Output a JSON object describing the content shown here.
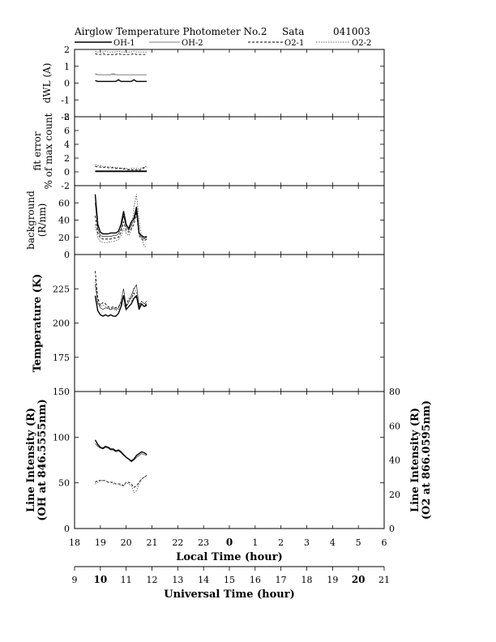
{
  "header": {
    "title": "Airglow Temperature Photometer No.2",
    "site": "Sata",
    "date": "041003"
  },
  "legend": [
    {
      "name": "OH-1",
      "style": "solid-thick"
    },
    {
      "name": "OH-2",
      "style": "solid-thin"
    },
    {
      "name": "O2-1",
      "style": "dashed"
    },
    {
      "name": "O2-2",
      "style": "dotted"
    }
  ],
  "chart_data": {
    "type": "line",
    "x_local_hours": [
      18.8,
      18.9,
      19.0,
      19.1,
      19.2,
      19.3,
      19.4,
      19.5,
      19.6,
      19.7,
      19.8,
      19.9,
      20.0,
      20.1,
      20.2,
      20.3,
      20.4,
      20.5,
      20.6,
      20.7,
      20.8
    ],
    "x_axes": {
      "local": {
        "label": "Local Time (hour)",
        "ticks": [
          "18",
          "19",
          "20",
          "21",
          "22",
          "23",
          "0",
          "1",
          "2",
          "3",
          "4",
          "5",
          "6"
        ],
        "bold_ticks": [
          "0"
        ]
      },
      "universal": {
        "label": "Universal Time (hour)",
        "ticks": [
          "9",
          "10",
          "11",
          "12",
          "13",
          "14",
          "15",
          "16",
          "17",
          "18",
          "19",
          "20",
          "21"
        ],
        "bold_ticks": [
          "10",
          "20"
        ]
      }
    },
    "panels": [
      {
        "id": "dwl",
        "ylabel": [
          "dWL (A)"
        ],
        "ylim": [
          -2,
          2
        ],
        "yticks": [
          "2",
          "1",
          "0",
          "-1",
          "-2"
        ],
        "series": [
          {
            "name": "OH-1",
            "values": [
              0.15,
              0.1,
              0.1,
              0.1,
              0.1,
              0.1,
              0.1,
              0.1,
              0.1,
              0.2,
              0.1,
              0.1,
              0.1,
              0.1,
              0.1,
              0.2,
              0.1,
              0.1,
              0.1,
              0.1,
              0.1
            ]
          },
          {
            "name": "OH-2",
            "values": [
              0.55,
              0.5,
              0.5,
              0.5,
              0.5,
              0.5,
              0.5,
              0.55,
              0.5,
              0.5,
              0.5,
              0.5,
              0.5,
              0.5,
              0.5,
              0.5,
              0.5,
              0.5,
              0.5,
              0.5,
              0.5
            ]
          },
          {
            "name": "O2-1",
            "values": [
              1.75,
              1.7,
              1.7,
              1.75,
              1.7,
              1.7,
              1.7,
              1.7,
              1.7,
              1.75,
              1.7,
              1.7,
              1.7,
              1.7,
              1.7,
              1.75,
              1.7,
              1.7,
              1.7,
              1.7,
              1.7
            ]
          },
          {
            "name": "O2-2",
            "values": [
              1.9,
              1.85,
              1.85,
              1.85,
              1.9,
              1.85,
              1.85,
              1.85,
              1.85,
              1.9,
              1.85,
              1.85,
              1.85,
              1.85,
              1.85,
              1.9,
              1.85,
              1.85,
              1.85,
              1.85,
              1.85
            ]
          }
        ]
      },
      {
        "id": "fit",
        "ylabel": [
          "fit error",
          "% of max count"
        ],
        "ylim": [
          -2,
          8
        ],
        "yticks": [
          "8",
          "6",
          "4",
          "2",
          "0",
          "-2"
        ],
        "series": [
          {
            "name": "OH-1",
            "values": [
              0.05,
              0.05,
              0.05,
              0.05,
              0.05,
              0.05,
              0.05,
              0.05,
              0.05,
              0.05,
              0.05,
              0.05,
              0.05,
              0.05,
              0.05,
              0.05,
              0.05,
              0.05,
              0.05,
              0.05,
              0.05
            ]
          },
          {
            "name": "OH-2",
            "values": [
              0.15,
              0.15,
              0.15,
              0.15,
              0.15,
              0.15,
              0.15,
              0.15,
              0.15,
              0.15,
              0.15,
              0.15,
              0.15,
              0.15,
              0.15,
              0.15,
              0.15,
              0.15,
              0.15,
              0.15,
              0.15
            ]
          },
          {
            "name": "O2-1",
            "values": [
              0.8,
              0.7,
              0.7,
              0.6,
              0.7,
              0.6,
              0.6,
              0.6,
              0.5,
              0.5,
              0.5,
              0.4,
              0.4,
              0.3,
              0.3,
              0.3,
              0.3,
              0.2,
              0.4,
              0.6,
              0.7
            ]
          },
          {
            "name": "O2-2",
            "values": [
              1.0,
              0.9,
              0.9,
              0.8,
              0.8,
              0.8,
              0.7,
              0.7,
              0.6,
              0.6,
              0.5,
              0.6,
              0.5,
              0.4,
              0.5,
              0.5,
              0.5,
              0.4,
              0.6,
              0.7,
              0.8
            ]
          }
        ]
      },
      {
        "id": "background",
        "ylabel": [
          "background",
          "(R/nm)"
        ],
        "ylim": [
          0,
          80
        ],
        "yticks": [
          "60",
          "40",
          "20",
          "0"
        ],
        "series": [
          {
            "name": "OH-1",
            "values": [
              70,
              35,
              26,
              24,
              24,
              24,
              25,
              25,
              25,
              27,
              35,
              50,
              35,
              30,
              38,
              42,
              55,
              25,
              22,
              20,
              21
            ]
          },
          {
            "name": "OH-2",
            "values": [
              60,
              30,
              22,
              21,
              21,
              21,
              21,
              22,
              22,
              24,
              30,
              45,
              32,
              28,
              34,
              40,
              50,
              24,
              20,
              18,
              20
            ]
          },
          {
            "name": "O2-1",
            "values": [
              45,
              25,
              19,
              18,
              18,
              18,
              18,
              19,
              19,
              20,
              26,
              38,
              28,
              26,
              30,
              35,
              48,
              22,
              18,
              16,
              18
            ]
          },
          {
            "name": "O2-2",
            "values": [
              35,
              20,
              15,
              14,
              14,
              14,
              15,
              15,
              16,
              17,
              22,
              30,
              25,
              22,
              28,
              55,
              70,
              40,
              20,
              10,
              8
            ]
          }
        ]
      },
      {
        "id": "temperature",
        "ylabel": [
          "Temperature (K)"
        ],
        "ylim": [
          150,
          250
        ],
        "yticks": [
          "225",
          "200",
          "175"
        ],
        "series": [
          {
            "name": "OH-1",
            "values": [
              220,
              209,
              206,
              205,
              206,
              205,
              206,
              205,
              205,
              207,
              212,
              220,
              210,
              212,
              214,
              218,
              220,
              210,
              214,
              212,
              213
            ]
          },
          {
            "name": "OH-2",
            "values": [
              228,
              215,
              211,
              210,
              211,
              211,
              210,
              211,
              210,
              211,
              216,
              225,
              212,
              215,
              220,
              225,
              228,
              212,
              216,
              214,
              216
            ]
          },
          {
            "name": "O2-1",
            "values": [
              238,
              218,
              213,
              215,
              214,
              212,
              211,
              212,
              211,
              212,
              214,
              220,
              212,
              218,
              218,
              222,
              218,
              214,
              214,
              212,
              215
            ]
          },
          {
            "name": "O2-2",
            "values": [
              232,
              214,
              212,
              213,
              212,
              210,
              210,
              210,
              209,
              210,
              212,
              214,
              209,
              212,
              214,
              226,
              222,
              212,
              214,
              212,
              214
            ]
          }
        ]
      },
      {
        "id": "intensity",
        "ylabel": [
          "Line Intensity (R)",
          "(OH at 846.5555nm)"
        ],
        "ylim": [
          0,
          150
        ],
        "yticks": [
          "150",
          "100",
          "50",
          "0"
        ],
        "right_ylabel": [
          "Line Intensity (R)",
          "(O2 at 866.0595nm)"
        ],
        "right_ylim": [
          0,
          80
        ],
        "right_yticks": [
          "80",
          "60",
          "40",
          "20",
          "0"
        ],
        "series": [
          {
            "name": "OH-1",
            "axis": "left",
            "values": [
              97,
              92,
              89,
              88,
              90,
              89,
              87,
              87,
              85,
              86,
              84,
              81,
              78,
              76,
              74,
              76,
              80,
              82,
              84,
              83,
              81
            ]
          },
          {
            "name": "OH-2",
            "axis": "left",
            "values": [
              93,
              90,
              88,
              87,
              89,
              88,
              86,
              86,
              84,
              85,
              83,
              80,
              78,
              76,
              73,
              75,
              78,
              80,
              82,
              81,
              80
            ]
          },
          {
            "name": "O2-1",
            "axis": "right",
            "values": [
              27,
              28,
              28,
              28,
              28,
              27,
              27,
              27,
              26,
              26,
              26,
              25,
              27,
              27,
              26,
              24,
              25,
              27,
              29,
              30,
              31
            ]
          },
          {
            "name": "O2-2",
            "axis": "right",
            "values": [
              26,
              27,
              28,
              28,
              28,
              27,
              27,
              26,
              26,
              26,
              25,
              25,
              27,
              26,
              25,
              21,
              22,
              26,
              29,
              30,
              31
            ]
          }
        ]
      }
    ]
  }
}
